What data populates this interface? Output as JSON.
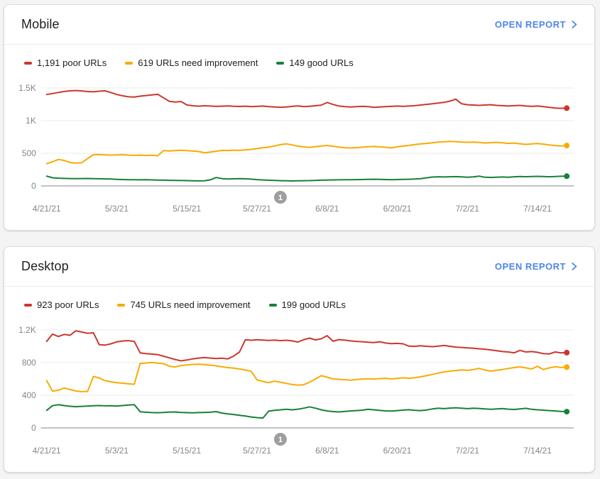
{
  "colors": {
    "poor": "#cc372d",
    "needs_improvement": "#f9ab00",
    "good": "#188038",
    "link": "#4e86ec",
    "axis_line": "#80868b",
    "grid_line": "#ebebeb",
    "tick_label": "#80868b",
    "badge": "#9e9e9e",
    "card_border": "#dadce0",
    "page_bg": "#f4f4f4"
  },
  "cards": [
    {
      "title": "Mobile",
      "open_report_label": "OPEN REPORT",
      "legend": [
        {
          "label": "1,191 poor URLs",
          "value": 1191,
          "color_key": "poor"
        },
        {
          "label": "619 URLs need improvement",
          "value": 619,
          "color_key": "needs_improvement"
        },
        {
          "label": "149 good URLs",
          "value": 149,
          "color_key": "good"
        }
      ]
    },
    {
      "title": "Desktop",
      "open_report_label": "OPEN REPORT",
      "legend": [
        {
          "label": "923 poor URLs",
          "value": 923,
          "color_key": "poor"
        },
        {
          "label": "745 URLs need improvement",
          "value": 745,
          "color_key": "needs_improvement"
        },
        {
          "label": "199 good URLs",
          "value": 199,
          "color_key": "good"
        }
      ]
    }
  ],
  "chart_data": [
    {
      "type": "line",
      "title": "Mobile",
      "x_start": "4/21/21",
      "x_end": "7/19/21",
      "x_interval": "daily",
      "ylim": [
        0,
        1650
      ],
      "y_tick_step": 500,
      "grid": "horizontal",
      "legend_position": "top",
      "y_ticks": [
        {
          "value": 0,
          "label": "0"
        },
        {
          "value": 500,
          "label": "500"
        },
        {
          "value": 1000,
          "label": "1K"
        },
        {
          "value": 1500,
          "label": "1.5K"
        }
      ],
      "x_ticks": [
        {
          "day_index": 0,
          "label": "4/21/21"
        },
        {
          "day_index": 12,
          "label": "5/3/21"
        },
        {
          "day_index": 24,
          "label": "5/15/21"
        },
        {
          "day_index": 36,
          "label": "5/27/21"
        },
        {
          "day_index": 48,
          "label": "6/8/21"
        },
        {
          "day_index": 60,
          "label": "6/20/21"
        },
        {
          "day_index": 72,
          "label": "7/2/21"
        },
        {
          "day_index": 84,
          "label": "7/14/21"
        }
      ],
      "annotation_marker": {
        "label": "1",
        "day_index": 40
      },
      "series": [
        {
          "name": "poor URLs",
          "color_key": "poor",
          "latest": 1191,
          "values": [
            1400,
            1415,
            1432,
            1447,
            1456,
            1461,
            1455,
            1446,
            1441,
            1451,
            1456,
            1430,
            1400,
            1380,
            1365,
            1362,
            1375,
            1385,
            1395,
            1403,
            1350,
            1295,
            1285,
            1292,
            1240,
            1228,
            1222,
            1228,
            1224,
            1219,
            1222,
            1226,
            1221,
            1217,
            1222,
            1214,
            1219,
            1224,
            1215,
            1209,
            1205,
            1210,
            1219,
            1225,
            1215,
            1220,
            1228,
            1238,
            1278,
            1248,
            1224,
            1214,
            1209,
            1214,
            1219,
            1214,
            1204,
            1209,
            1214,
            1219,
            1224,
            1219,
            1224,
            1229,
            1239,
            1249,
            1259,
            1269,
            1279,
            1299,
            1329,
            1259,
            1244,
            1239,
            1234,
            1239,
            1244,
            1234,
            1229,
            1224,
            1229,
            1234,
            1224,
            1219,
            1224,
            1214,
            1204,
            1194,
            1189,
            1191
          ]
        },
        {
          "name": "URLs need improvement",
          "color_key": "needs_improvement",
          "latest": 619,
          "values": [
            340,
            370,
            405,
            390,
            358,
            350,
            354,
            420,
            478,
            482,
            476,
            472,
            476,
            478,
            472,
            468,
            472,
            466,
            470,
            462,
            540,
            536,
            542,
            546,
            540,
            534,
            528,
            506,
            518,
            532,
            545,
            542,
            548,
            545,
            552,
            560,
            572,
            584,
            596,
            612,
            632,
            645,
            628,
            610,
            598,
            590,
            600,
            612,
            620,
            608,
            595,
            585,
            582,
            586,
            594,
            600,
            604,
            598,
            592,
            582,
            600,
            610,
            621,
            634,
            645,
            651,
            661,
            671,
            676,
            681,
            678,
            672,
            668,
            672,
            665,
            658,
            662,
            668,
            660,
            651,
            656,
            646,
            636,
            645,
            650,
            640,
            628,
            618,
            612,
            619
          ]
        },
        {
          "name": "good URLs",
          "color_key": "good",
          "latest": 149,
          "values": [
            150,
            125,
            118,
            115,
            113,
            112,
            113,
            114,
            112,
            110,
            108,
            105,
            101,
            98,
            96,
            95,
            94,
            96,
            92,
            90,
            88,
            86,
            85,
            83,
            81,
            79,
            77,
            79,
            93,
            128,
            112,
            106,
            109,
            111,
            109,
            104,
            97,
            91,
            87,
            84,
            80,
            78,
            76,
            78,
            80,
            82,
            85,
            88,
            90,
            92,
            94,
            96,
            95,
            97,
            98,
            100,
            102,
            100,
            98,
            96,
            98,
            100,
            102,
            105,
            112,
            124,
            136,
            140,
            137,
            140,
            142,
            138,
            134,
            138,
            150,
            133,
            130,
            134,
            137,
            134,
            140,
            144,
            141,
            144,
            147,
            143,
            140,
            144,
            148,
            149
          ]
        }
      ]
    },
    {
      "type": "line",
      "title": "Desktop",
      "x_start": "4/21/21",
      "x_end": "7/19/21",
      "x_interval": "daily",
      "ylim": [
        0,
        1300
      ],
      "y_tick_step": 400,
      "grid": "horizontal",
      "legend_position": "top",
      "y_ticks": [
        {
          "value": 0,
          "label": "0"
        },
        {
          "value": 400,
          "label": "400"
        },
        {
          "value": 800,
          "label": "800"
        },
        {
          "value": 1200,
          "label": "1.2K"
        }
      ],
      "x_ticks": [
        {
          "day_index": 0,
          "label": "4/21/21"
        },
        {
          "day_index": 12,
          "label": "5/3/21"
        },
        {
          "day_index": 24,
          "label": "5/15/21"
        },
        {
          "day_index": 36,
          "label": "5/27/21"
        },
        {
          "day_index": 48,
          "label": "6/8/21"
        },
        {
          "day_index": 60,
          "label": "6/20/21"
        },
        {
          "day_index": 72,
          "label": "7/2/21"
        },
        {
          "day_index": 84,
          "label": "7/14/21"
        }
      ],
      "annotation_marker": {
        "label": "1",
        "day_index": 40
      },
      "series": [
        {
          "name": "poor URLs",
          "color_key": "poor",
          "latest": 923,
          "values": [
            1060,
            1150,
            1120,
            1145,
            1135,
            1190,
            1175,
            1160,
            1165,
            1020,
            1015,
            1030,
            1055,
            1065,
            1070,
            1060,
            920,
            910,
            905,
            898,
            878,
            858,
            838,
            822,
            832,
            846,
            856,
            862,
            856,
            850,
            854,
            846,
            880,
            930,
            1080,
            1074,
            1080,
            1076,
            1072,
            1076,
            1070,
            1074,
            1066,
            1052,
            1082,
            1100,
            1078,
            1092,
            1130,
            1062,
            1082,
            1076,
            1066,
            1060,
            1056,
            1050,
            1046,
            1056,
            1040,
            1032,
            1036,
            1030,
            1002,
            1000,
            1006,
            1000,
            996,
            1002,
            1010,
            1000,
            990,
            986,
            980,
            976,
            970,
            964,
            956,
            946,
            936,
            930,
            920,
            950,
            930,
            936,
            926,
            910,
            906,
            930,
            920,
            923
          ]
        },
        {
          "name": "URLs need improvement",
          "color_key": "needs_improvement",
          "latest": 745,
          "values": [
            580,
            450,
            462,
            490,
            470,
            452,
            444,
            448,
            630,
            612,
            578,
            565,
            555,
            548,
            540,
            535,
            790,
            796,
            802,
            795,
            786,
            756,
            748,
            764,
            771,
            777,
            781,
            776,
            769,
            761,
            749,
            739,
            733,
            723,
            709,
            694,
            588,
            570,
            556,
            572,
            560,
            545,
            532,
            524,
            530,
            560,
            600,
            640,
            622,
            600,
            596,
            590,
            585,
            592,
            598,
            602,
            598,
            604,
            608,
            600,
            606,
            614,
            608,
            615,
            626,
            640,
            655,
            671,
            686,
            696,
            702,
            712,
            705,
            716,
            729,
            710,
            696,
            706,
            716,
            729,
            739,
            748,
            736,
            722,
            755,
            716,
            736,
            750,
            741,
            745
          ]
        },
        {
          "name": "good URLs",
          "color_key": "good",
          "latest": 199,
          "values": [
            215,
            272,
            284,
            274,
            265,
            260,
            264,
            268,
            271,
            274,
            270,
            272,
            268,
            274,
            281,
            285,
            198,
            192,
            188,
            186,
            189,
            193,
            196,
            189,
            187,
            185,
            188,
            190,
            192,
            200,
            182,
            172,
            164,
            155,
            145,
            134,
            126,
            121,
            205,
            215,
            222,
            228,
            222,
            230,
            242,
            258,
            242,
            222,
            208,
            200,
            196,
            202,
            208,
            212,
            217,
            228,
            222,
            214,
            209,
            206,
            212,
            218,
            223,
            216,
            212,
            220,
            232,
            241,
            236,
            243,
            247,
            241,
            236,
            242,
            238,
            232,
            228,
            233,
            237,
            230,
            226,
            233,
            240,
            228,
            222,
            217,
            212,
            208,
            202,
            199
          ]
        }
      ]
    }
  ]
}
